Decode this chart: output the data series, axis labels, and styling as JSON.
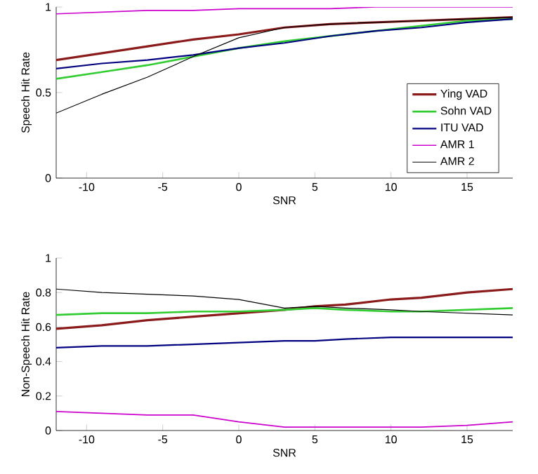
{
  "chart_data": [
    {
      "type": "line",
      "xlabel": "SNR",
      "ylabel": "Speech Hit Rate",
      "xlim": [
        -12,
        18
      ],
      "ylim": [
        0,
        1
      ],
      "xticks": [
        -10,
        -5,
        0,
        5,
        10,
        15
      ],
      "yticks": [
        0,
        0.5,
        1
      ],
      "legend": "bottom right",
      "grid": false,
      "x": [
        -12,
        -9,
        -6,
        -3,
        0,
        3,
        6,
        9,
        12,
        15,
        18
      ],
      "series": [
        {
          "name": "Ying VAD",
          "color": "#8b1a1a",
          "values": [
            0.69,
            0.73,
            0.77,
            0.81,
            0.84,
            0.88,
            0.9,
            0.91,
            0.92,
            0.93,
            0.94
          ]
        },
        {
          "name": "Sohn VAD",
          "color": "#33cc33",
          "values": [
            0.58,
            0.62,
            0.66,
            0.71,
            0.76,
            0.8,
            0.83,
            0.86,
            0.89,
            0.92,
            0.93
          ]
        },
        {
          "name": "ITU VAD",
          "color": "#000080",
          "values": [
            0.64,
            0.67,
            0.69,
            0.72,
            0.76,
            0.79,
            0.83,
            0.86,
            0.88,
            0.91,
            0.93
          ]
        },
        {
          "name": "AMR 1",
          "color": "#cc00cc",
          "values": [
            0.96,
            0.97,
            0.98,
            0.98,
            0.99,
            0.99,
            0.99,
            1.0,
            1.0,
            1.0,
            1.0
          ]
        },
        {
          "name": "AMR 2",
          "color": "#000000",
          "values": [
            0.38,
            0.49,
            0.59,
            0.71,
            0.82,
            0.88,
            0.9,
            0.91,
            0.92,
            0.93,
            0.94
          ]
        }
      ]
    },
    {
      "type": "line",
      "xlabel": "SNR",
      "ylabel": "Non-Speech Hit Rate",
      "xlim": [
        -12,
        18
      ],
      "ylim": [
        0,
        1
      ],
      "xticks": [
        -10,
        -5,
        0,
        5,
        10,
        15
      ],
      "yticks": [
        0,
        0.2,
        0.4,
        0.6,
        0.8,
        1
      ],
      "grid": false,
      "x": [
        -12,
        -9,
        -6,
        -3,
        0,
        3,
        5,
        7,
        10,
        12,
        15,
        18
      ],
      "series": [
        {
          "color": "#8b1a1a",
          "values": [
            0.59,
            0.61,
            0.64,
            0.66,
            0.68,
            0.7,
            0.72,
            0.73,
            0.76,
            0.77,
            0.8,
            0.82
          ]
        },
        {
          "color": "#33cc33",
          "values": [
            0.67,
            0.68,
            0.68,
            0.69,
            0.69,
            0.7,
            0.71,
            0.7,
            0.69,
            0.69,
            0.7,
            0.71
          ]
        },
        {
          "color": "#000080",
          "values": [
            0.48,
            0.49,
            0.49,
            0.5,
            0.51,
            0.52,
            0.52,
            0.53,
            0.54,
            0.54,
            0.54,
            0.54
          ]
        },
        {
          "color": "#cc00cc",
          "values": [
            0.11,
            0.1,
            0.09,
            0.09,
            0.05,
            0.02,
            0.02,
            0.02,
            0.02,
            0.02,
            0.03,
            0.05
          ]
        },
        {
          "color": "#000000",
          "values": [
            0.82,
            0.8,
            0.79,
            0.78,
            0.76,
            0.71,
            0.72,
            0.71,
            0.7,
            0.69,
            0.68,
            0.67
          ]
        }
      ]
    }
  ]
}
